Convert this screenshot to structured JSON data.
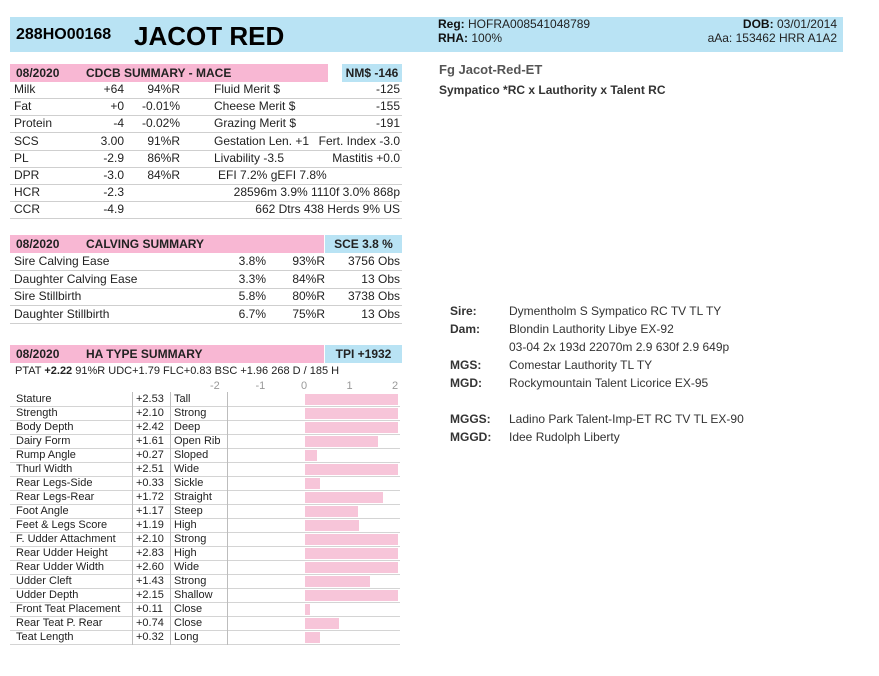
{
  "header": {
    "code": "288HO00168",
    "name": "JACOT RED",
    "reg_label": "Reg:",
    "reg_value": "HOFRA008541048789",
    "rha_label": "RHA:",
    "rha_value": "100%",
    "dob_label": "DOB:",
    "dob_value": "03/01/2014",
    "aaa": "aAa: 153462  HRR  A1A2"
  },
  "cdcb": {
    "date": "08/2020",
    "title": "CDCB SUMMARY - MACE",
    "nm": "NM$ -146",
    "rows": [
      {
        "c1": "Milk",
        "c2": "+64",
        "c3": "94%R",
        "c4": "Fluid Merit $",
        "c5": "-125"
      },
      {
        "c1": "Fat",
        "c2": "+0",
        "c3": "-0.01%",
        "c4": "Cheese Merit $",
        "c5": "-155"
      },
      {
        "c1": "Protein",
        "c2": "-4",
        "c3": "-0.02%",
        "c4": "Grazing Merit $",
        "c5": "-191"
      },
      {
        "c1": "SCS",
        "c2": "3.00",
        "c3": "91%R",
        "c4": "Gestation Len. +1",
        "c5": "Fert. Index -3.0"
      },
      {
        "c1": "PL",
        "c2": "-2.9",
        "c3": "86%R",
        "c4": "Livability   -3.5",
        "c5": "Mastitis  +0.0"
      },
      {
        "c1": "DPR",
        "c2": "-3.0",
        "c3": "84%R",
        "c4": "EFI  7.2%  gEFI  7.8%",
        "c5": ""
      },
      {
        "c1": "HCR",
        "c2": "-2.3",
        "c3": "",
        "c4": "28596m  3.9%  1110f  3.0%  868p",
        "c5": ""
      },
      {
        "c1": "CCR",
        "c2": "-4.9",
        "c3": "",
        "c4": "662 Dtrs  438 Herds  9% US",
        "c5": ""
      }
    ]
  },
  "calving": {
    "date": "08/2020",
    "title": "CALVING SUMMARY",
    "sce": "SCE 3.8 %",
    "rows": [
      {
        "label": "Sire Calving Ease",
        "pct": "3.8%",
        "rel": "93%R",
        "obs": "3756 Obs"
      },
      {
        "label": "Daughter Calving Ease",
        "pct": "3.3%",
        "rel": "84%R",
        "obs": "13 Obs"
      },
      {
        "label": "Sire Stillbirth",
        "pct": "5.8%",
        "rel": "80%R",
        "obs": "3738 Obs"
      },
      {
        "label": "Daughter Stillbirth",
        "pct": "6.7%",
        "rel": "75%R",
        "obs": "13 Obs"
      }
    ]
  },
  "type": {
    "date": "08/2020",
    "title": "HA TYPE SUMMARY",
    "tpi": "TPI +1932",
    "ptat_label": "PTAT",
    "ptat_value": "+2.22",
    "ptat_rest": "91%R  UDC+1.79  FLC+0.83  BSC +1.96  268 D /  185 H",
    "scale": [
      "-2",
      "-1",
      "0",
      "1",
      "2"
    ],
    "traits": [
      {
        "name": "Stature",
        "value": "+2.53",
        "desc": "Tall",
        "score": 2.53
      },
      {
        "name": "Strength",
        "value": "+2.10",
        "desc": "Strong",
        "score": 2.1
      },
      {
        "name": "Body Depth",
        "value": "+2.42",
        "desc": "Deep",
        "score": 2.42
      },
      {
        "name": "Dairy Form",
        "value": "+1.61",
        "desc": "Open Rib",
        "score": 1.61
      },
      {
        "name": "Rump Angle",
        "value": "+0.27",
        "desc": "Sloped",
        "score": 0.27
      },
      {
        "name": "Thurl Width",
        "value": "+2.51",
        "desc": "Wide",
        "score": 2.51
      },
      {
        "name": "Rear Legs-Side",
        "value": "+0.33",
        "desc": "Sickle",
        "score": 0.33
      },
      {
        "name": "Rear Legs-Rear",
        "value": "+1.72",
        "desc": "Straight",
        "score": 1.72
      },
      {
        "name": "Foot Angle",
        "value": "+1.17",
        "desc": "Steep",
        "score": 1.17
      },
      {
        "name": "Feet & Legs Score",
        "value": "+1.19",
        "desc": "High",
        "score": 1.19
      },
      {
        "name": "F. Udder Attachment",
        "value": "+2.10",
        "desc": "Strong",
        "score": 2.1
      },
      {
        "name": "Rear Udder Height",
        "value": "+2.83",
        "desc": "High",
        "score": 2.83
      },
      {
        "name": "Rear Udder Width",
        "value": "+2.60",
        "desc": "Wide",
        "score": 2.6
      },
      {
        "name": "Udder Cleft",
        "value": "+1.43",
        "desc": "Strong",
        "score": 1.43
      },
      {
        "name": "Udder Depth",
        "value": "+2.15",
        "desc": "Shallow",
        "score": 2.15
      },
      {
        "name": "Front Teat Placement",
        "value": "+0.11",
        "desc": "Close",
        "score": 0.11
      },
      {
        "name": "Rear Teat P. Rear",
        "value": "+0.74",
        "desc": "Close",
        "score": 0.74
      },
      {
        "name": "Teat Length",
        "value": "+0.32",
        "desc": "Long",
        "score": 0.32
      }
    ]
  },
  "fullname": "Fg Jacot-Red-ET",
  "lineage": "Sympatico *RC x Lauthority x Talent RC",
  "pedigree": [
    {
      "label": "Sire:",
      "value": "Dymentholm S Sympatico RC TV TL TY"
    },
    {
      "label": "Dam:",
      "value": "Blondin Lauthority Libye EX-92"
    },
    {
      "label": "",
      "value": "03-04 2x 193d 22070m 2.9 630f 2.9 649p"
    },
    {
      "label": "MGS:",
      "value": "Comestar Lauthority TL TY"
    },
    {
      "label": "MGD:",
      "value": "Rockymountain Talent Licorice EX-95"
    },
    {
      "label": "MGGS:",
      "value": "Ladino Park Talent-Imp-ET RC TV TL EX-90"
    },
    {
      "label": "MGGD:",
      "value": "Idee Rudolph Liberty"
    }
  ]
}
